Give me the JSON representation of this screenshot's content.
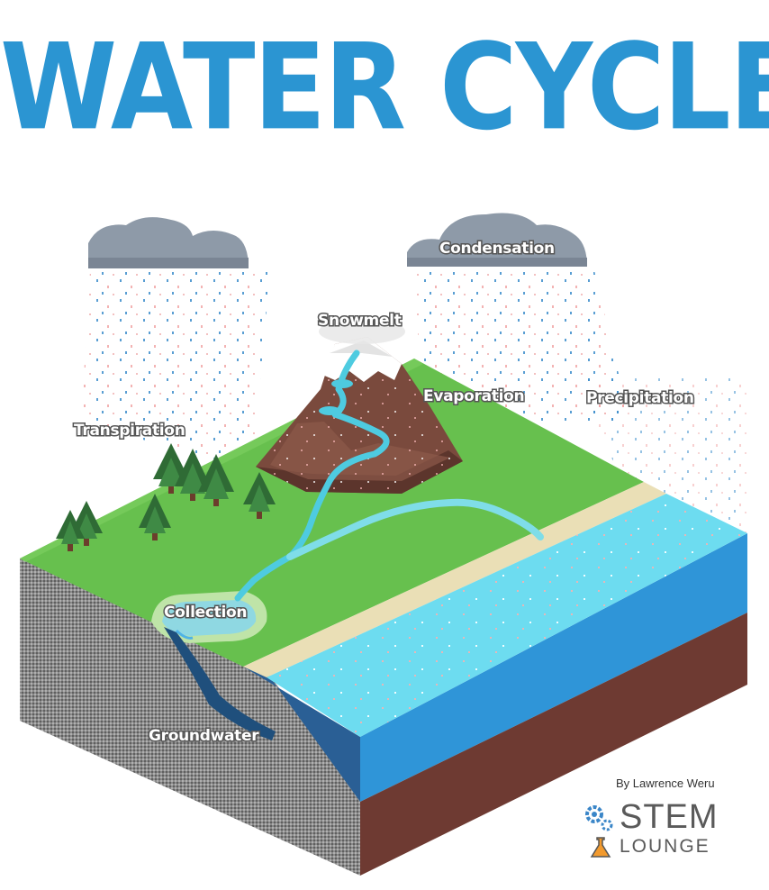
{
  "title": "WATER CYCLE",
  "labels": {
    "condensation": "Condensation",
    "snowmelt": "Snowmelt",
    "evaporation": "Evaporation",
    "precipitation": "Precipitation",
    "transpiration": "Transpiration",
    "collection": "Collection",
    "groundwater": "Groundwater"
  },
  "credit": {
    "byline": "By Lawrence Weru",
    "brand_line1": "STEM",
    "brand_line2": "LOUNGE"
  },
  "colors": {
    "title": "#2b95d2",
    "grass": "#67c04e",
    "ocean": "#3aa3dc",
    "ocean_surface": "#6ddcf0",
    "soil": "#6e3a32",
    "sand": "#eadfb6",
    "mountain": "#7a4a3d"
  }
}
